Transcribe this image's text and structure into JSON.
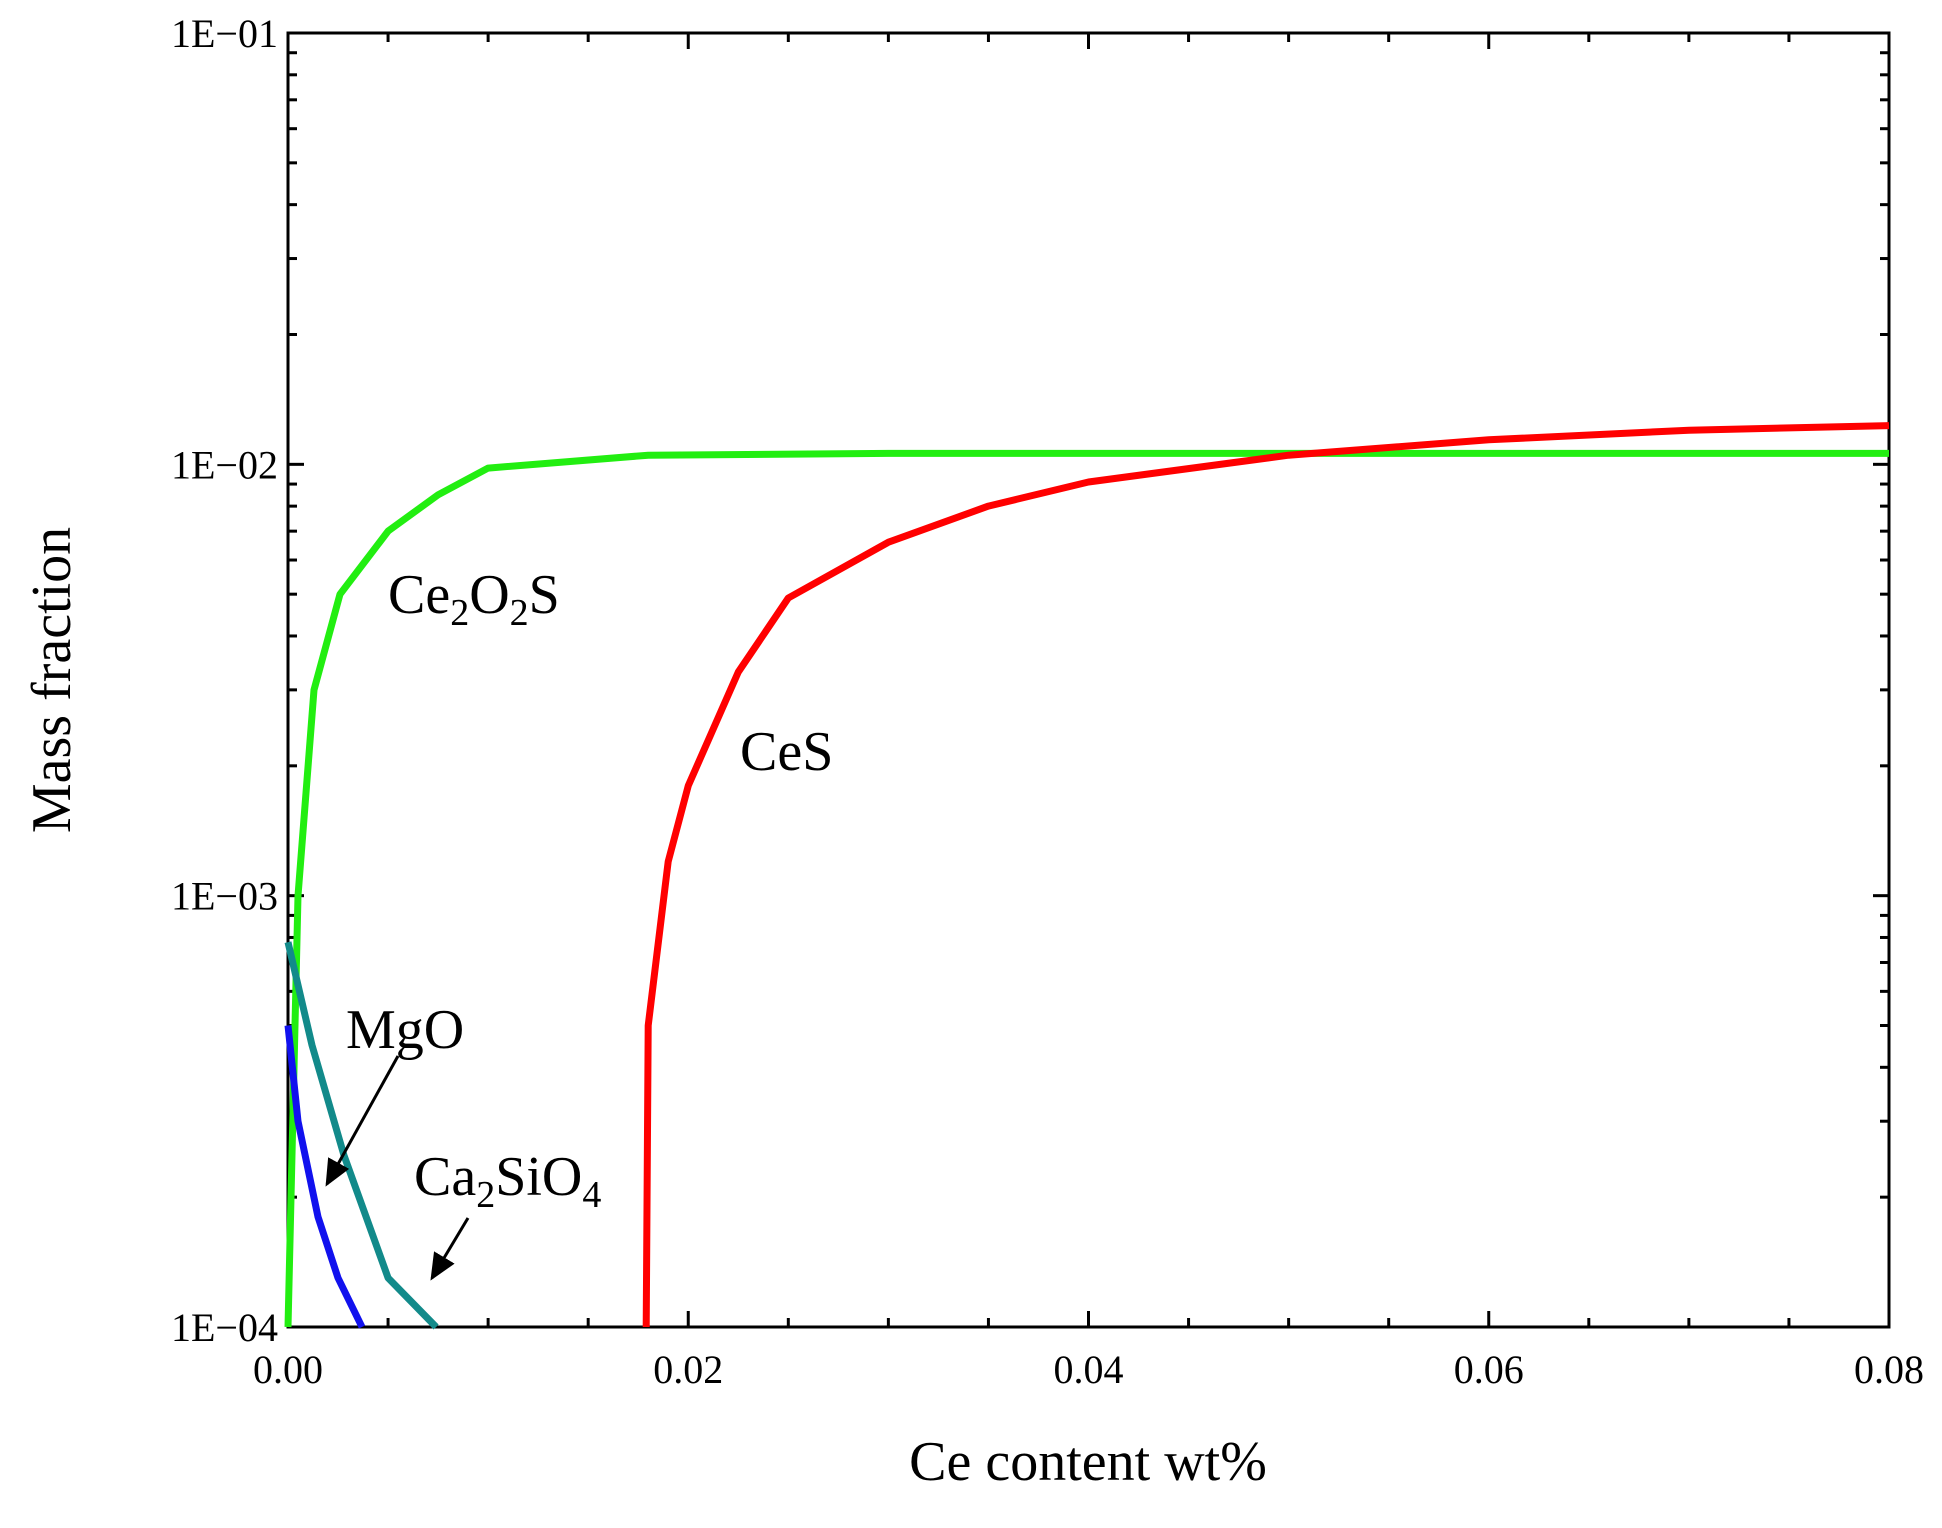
{
  "chart_data": {
    "type": "line",
    "title": "",
    "xlabel": "Ce content wt%",
    "ylabel": "Mass fraction",
    "xlim": [
      0,
      0.08
    ],
    "ylim": [
      0.0001,
      0.1
    ],
    "yscale": "log",
    "grid": false,
    "x_ticks": [
      {
        "value": 0.0,
        "label": "0.00"
      },
      {
        "value": 0.02,
        "label": "0.02"
      },
      {
        "value": 0.04,
        "label": "0.04"
      },
      {
        "value": 0.06,
        "label": "0.06"
      },
      {
        "value": 0.08,
        "label": "0.08"
      }
    ],
    "y_ticks": [
      {
        "value": 0.0001,
        "label": "1E−04"
      },
      {
        "value": 0.001,
        "label": "1E−03"
      },
      {
        "value": 0.01,
        "label": "1E−02"
      },
      {
        "value": 0.1,
        "label": "1E−01"
      }
    ],
    "series": [
      {
        "name": "Ce2O2S",
        "label_main": [
          "Ce",
          "O",
          "S"
        ],
        "label_subs": [
          "2",
          "2"
        ],
        "color": "#22ee11",
        "x": [
          0.0,
          0.0005,
          0.0013,
          0.0026,
          0.005,
          0.0075,
          0.01,
          0.018,
          0.03,
          0.05,
          0.08
        ],
        "y": [
          0.0001,
          0.001,
          0.003,
          0.005,
          0.007,
          0.0085,
          0.0098,
          0.0105,
          0.0106,
          0.0106,
          0.0106
        ]
      },
      {
        "name": "CeS",
        "label_main": [
          "CeS"
        ],
        "label_subs": [],
        "color": "#ff0000",
        "x": [
          0.0179,
          0.018,
          0.019,
          0.02,
          0.0225,
          0.025,
          0.03,
          0.035,
          0.04,
          0.05,
          0.06,
          0.07,
          0.08
        ],
        "y": [
          0.0001,
          0.0005,
          0.0012,
          0.0018,
          0.0033,
          0.0049,
          0.0066,
          0.008,
          0.0091,
          0.0105,
          0.0114,
          0.012,
          0.0123
        ]
      },
      {
        "name": "MgO",
        "label_main": [
          "MgO"
        ],
        "label_subs": [],
        "color": "#1111ee",
        "x": [
          0.0,
          0.0005,
          0.0015,
          0.0025,
          0.0037
        ],
        "y": [
          0.0005,
          0.0003,
          0.00018,
          0.00013,
          0.0001
        ]
      },
      {
        "name": "Ca2SiO4",
        "label_main": [
          "Ca",
          "SiO"
        ],
        "label_subs": [
          "2",
          "4"
        ],
        "color": "#128a8a",
        "x": [
          0.0,
          0.0012,
          0.0028,
          0.005,
          0.0074
        ],
        "y": [
          0.00078,
          0.00045,
          0.00025,
          0.00013,
          0.0001
        ]
      }
    ]
  }
}
